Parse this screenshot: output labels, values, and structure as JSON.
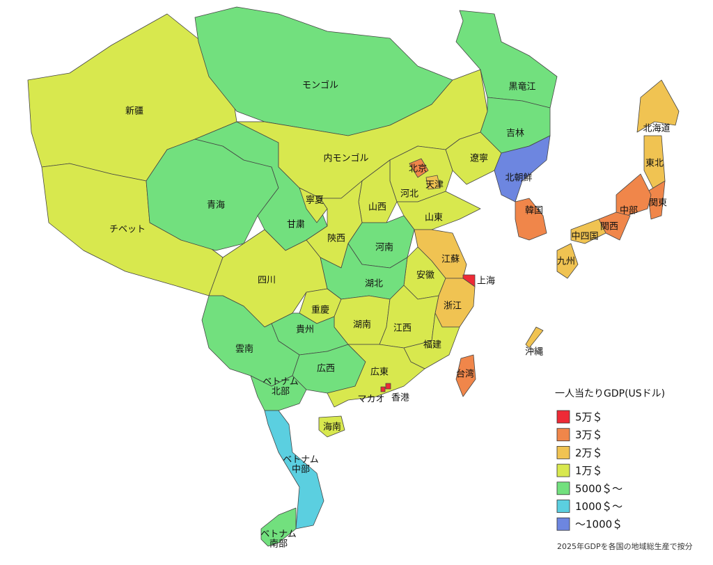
{
  "legend": {
    "title": "一人当たりGDP(USドル)",
    "items": [
      {
        "label": "5万＄",
        "color": "#ee2a36"
      },
      {
        "label": "3万＄",
        "color": "#f0864a"
      },
      {
        "label": "2万＄",
        "color": "#f0c352"
      },
      {
        "label": "1万＄",
        "color": "#d8e84e"
      },
      {
        "label": "5000＄～",
        "color": "#72e07e"
      },
      {
        "label": "1000＄～",
        "color": "#5bcfe0"
      },
      {
        "label": "～1000＄",
        "color": "#6d86e0"
      }
    ]
  },
  "regions": [
    {
      "label": "新疆",
      "color": "#d8e84e"
    },
    {
      "label": "モンゴル",
      "color": "#72e07e"
    },
    {
      "label": "チベット",
      "color": "#d8e84e"
    },
    {
      "label": "青海",
      "color": "#72e07e"
    },
    {
      "label": "甘粛",
      "color": "#72e07e"
    },
    {
      "label": "内モンゴル",
      "color": "#d8e84e"
    },
    {
      "label": "黒竜江",
      "color": "#72e07e"
    },
    {
      "label": "吉林",
      "color": "#72e07e"
    },
    {
      "label": "遼寧",
      "color": "#d8e84e"
    },
    {
      "label": "北朝鮮",
      "color": "#6d86e0"
    },
    {
      "label": "韓国",
      "color": "#f0864a"
    },
    {
      "label": "河北",
      "color": "#d8e84e"
    },
    {
      "label": "北京",
      "color": "#f0864a"
    },
    {
      "label": "天津",
      "color": "#f0c352"
    },
    {
      "label": "山西",
      "color": "#d8e84e"
    },
    {
      "label": "寧夏",
      "color": "#d8e84e"
    },
    {
      "label": "陝西",
      "color": "#d8e84e"
    },
    {
      "label": "山東",
      "color": "#d8e84e"
    },
    {
      "label": "河南",
      "color": "#72e07e"
    },
    {
      "label": "江蘇",
      "color": "#f0c352"
    },
    {
      "label": "上海",
      "color": "#ee2a36"
    },
    {
      "label": "安徽",
      "color": "#d8e84e"
    },
    {
      "label": "浙江",
      "color": "#f0c352"
    },
    {
      "label": "湖北",
      "color": "#72e07e"
    },
    {
      "label": "四川",
      "color": "#d8e84e"
    },
    {
      "label": "重慶",
      "color": "#d8e84e"
    },
    {
      "label": "湖南",
      "color": "#d8e84e"
    },
    {
      "label": "江西",
      "color": "#d8e84e"
    },
    {
      "label": "貴州",
      "color": "#72e07e"
    },
    {
      "label": "雲南",
      "color": "#72e07e"
    },
    {
      "label": "広西",
      "color": "#72e07e"
    },
    {
      "label": "福建",
      "color": "#d8e84e"
    },
    {
      "label": "広東",
      "color": "#d8e84e"
    },
    {
      "label": "海南",
      "color": "#d8e84e"
    },
    {
      "label": "台湾",
      "color": "#f0864a"
    },
    {
      "label": "マカオ",
      "color": "#ee2a36"
    },
    {
      "label": "香港",
      "color": "#ee2a36"
    },
    {
      "label": [
        "ベトナム",
        "北部"
      ],
      "color": "#72e07e"
    },
    {
      "label": [
        "ベトナム",
        "中部"
      ],
      "color": "#5bcfe0"
    },
    {
      "label": [
        "ベトナム",
        "南部"
      ],
      "color": "#72e07e"
    },
    {
      "label": "北海道",
      "color": "#f0c352"
    },
    {
      "label": "東北",
      "color": "#f0c352"
    },
    {
      "label": "関東",
      "color": "#f0864a"
    },
    {
      "label": "中部",
      "color": "#f0864a"
    },
    {
      "label": "関西",
      "color": "#f0864a"
    },
    {
      "label": "中四国",
      "color": "#f0c352"
    },
    {
      "label": "九州",
      "color": "#f0c352"
    },
    {
      "label": "沖縄",
      "color": "#f0c352"
    }
  ],
  "note": "2025年GDPを各国の地域総生産で按分"
}
